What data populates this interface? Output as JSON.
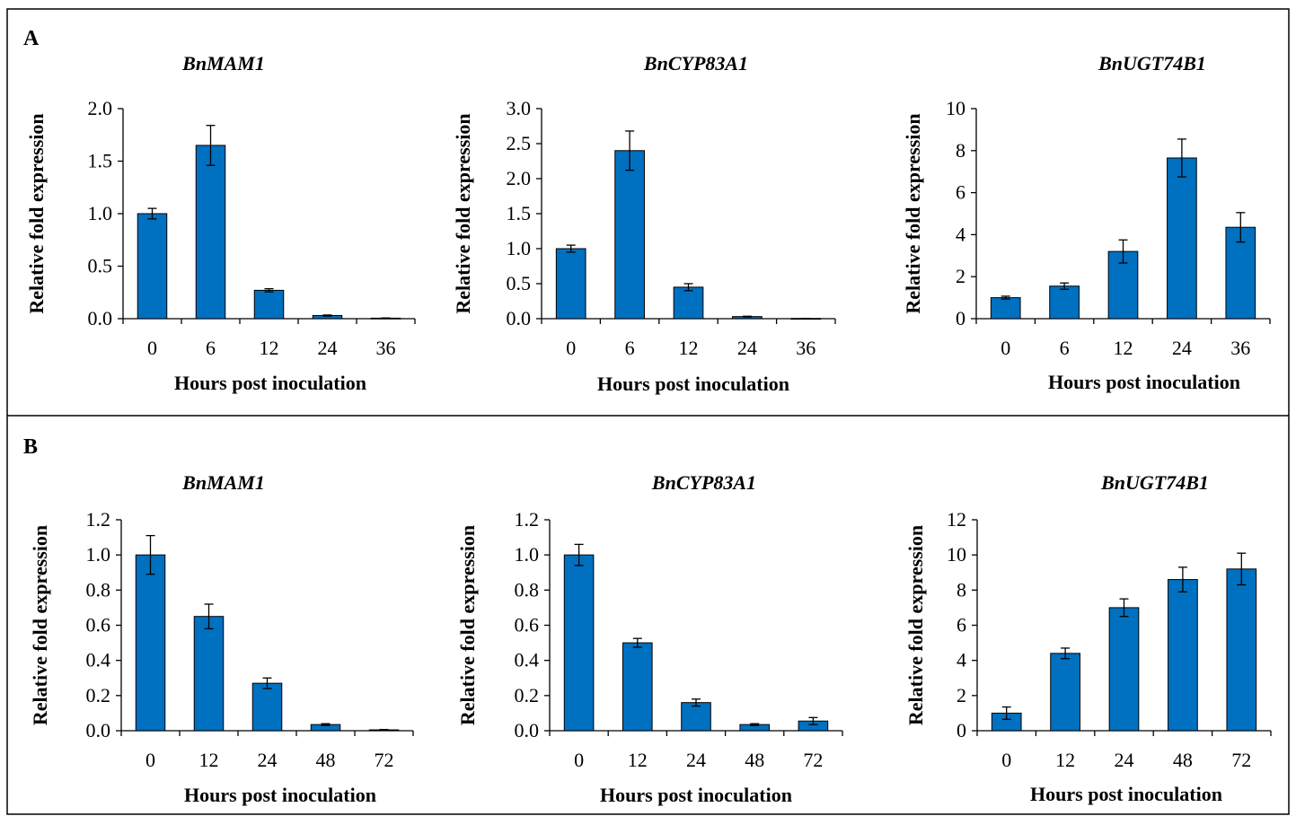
{
  "colors": {
    "bar": "#0070C0",
    "bar_edge": "#000000",
    "axis": "#000000",
    "frame": "#000000"
  },
  "panels": [
    {
      "letter": "A"
    },
    {
      "letter": "B"
    }
  ],
  "chart_data": [
    {
      "panel": "A",
      "type": "bar",
      "title": "BnMAM1",
      "xlabel": "Hours post  inoculation",
      "ylabel": "Relative fold expression",
      "categories": [
        "0",
        "6",
        "12",
        "24",
        "36"
      ],
      "values": [
        1.0,
        1.65,
        0.27,
        0.03,
        0.005
      ],
      "errors": [
        0.05,
        0.19,
        0.015,
        0.005,
        0.002
      ],
      "ylim": [
        0,
        2.0
      ],
      "yticks": [
        "0.0",
        "0.5",
        "1.0",
        "1.5",
        "2.0"
      ]
    },
    {
      "panel": "A",
      "type": "bar",
      "title": "BnCYP83A1",
      "xlabel": "Hours post inoculation",
      "ylabel": "Relative fold expression",
      "categories": [
        "0",
        "6",
        "12",
        "24",
        "36"
      ],
      "values": [
        1.0,
        2.4,
        0.45,
        0.03,
        0.003
      ],
      "errors": [
        0.05,
        0.28,
        0.05,
        0.005,
        0.001
      ],
      "ylim": [
        0,
        3.0
      ],
      "yticks": [
        "0.0",
        "0.5",
        "1.0",
        "1.5",
        "2.0",
        "2.5",
        "3.0"
      ]
    },
    {
      "panel": "A",
      "type": "bar",
      "title": "BnUGT74B1",
      "xlabel": "Hours post inoculation",
      "ylabel": "Relative fold expression",
      "categories": [
        "0",
        "6",
        "12",
        "24",
        "36"
      ],
      "values": [
        1.0,
        1.55,
        3.2,
        7.65,
        4.35
      ],
      "errors": [
        0.07,
        0.15,
        0.55,
        0.9,
        0.7
      ],
      "ylim": [
        0,
        10
      ],
      "yticks": [
        "0",
        "2",
        "4",
        "6",
        "8",
        "10"
      ]
    },
    {
      "panel": "B",
      "type": "bar",
      "title": "BnMAM1",
      "xlabel": "Hours post inoculation",
      "ylabel": "Relative fold expression",
      "categories": [
        "0",
        "12",
        "24",
        "48",
        "72"
      ],
      "values": [
        1.0,
        0.65,
        0.27,
        0.035,
        0.005
      ],
      "errors": [
        0.11,
        0.07,
        0.03,
        0.005,
        0.002
      ],
      "ylim": [
        0,
        1.2
      ],
      "yticks": [
        "0.0",
        "0.2",
        "0.4",
        "0.6",
        "0.8",
        "1.0",
        "1.2"
      ]
    },
    {
      "panel": "B",
      "type": "bar",
      "title": "BnCYP83A1",
      "xlabel": "Hours post inoculation",
      "ylabel": "Relative fold expression",
      "categories": [
        "0",
        "12",
        "24",
        "48",
        "72"
      ],
      "values": [
        1.0,
        0.5,
        0.16,
        0.035,
        0.055
      ],
      "errors": [
        0.06,
        0.025,
        0.02,
        0.005,
        0.02
      ],
      "ylim": [
        0,
        1.2
      ],
      "yticks": [
        "0.0",
        "0.2",
        "0.4",
        "0.6",
        "0.8",
        "1.0",
        "1.2"
      ]
    },
    {
      "panel": "B",
      "type": "bar",
      "title": "BnUGT74B1",
      "xlabel": "Hours post inoculation",
      "ylabel": "Relative fold expression",
      "categories": [
        "0",
        "12",
        "24",
        "48",
        "72"
      ],
      "values": [
        1.0,
        4.4,
        7.0,
        8.6,
        9.2
      ],
      "errors": [
        0.35,
        0.3,
        0.5,
        0.7,
        0.9
      ],
      "ylim": [
        0,
        12
      ],
      "yticks": [
        "0",
        "2",
        "4",
        "6",
        "8",
        "10",
        "12"
      ]
    }
  ]
}
